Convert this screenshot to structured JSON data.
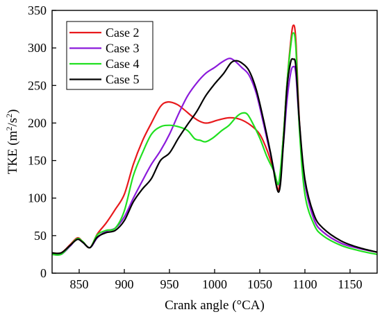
{
  "chart_data": {
    "type": "line",
    "title": "",
    "xlabel": "Crank angle (°CA)",
    "ylabel": "TKE (m²/s²)",
    "ylabel_parts": {
      "prefix": "TKE (m",
      "exp1": "2",
      "middle": "/s",
      "exp2": "2",
      "suffix": ")"
    },
    "xlim": [
      820,
      1180
    ],
    "ylim": [
      0,
      350
    ],
    "xticks": [
      850,
      900,
      950,
      1000,
      1050,
      1100,
      1150
    ],
    "yticks": [
      0,
      50,
      100,
      150,
      200,
      250,
      300,
      350
    ],
    "grid": false,
    "legend_position": "top-left",
    "series": [
      {
        "name": "Case 2",
        "color": "#e8191c",
        "x": [
          820,
          830,
          840,
          848,
          854,
          862,
          870,
          880,
          890,
          900,
          910,
          920,
          930,
          940,
          948,
          958,
          966,
          976,
          984,
          992,
          1004,
          1016,
          1028,
          1040,
          1050,
          1058,
          1066,
          1071,
          1076,
          1080,
          1084,
          1087,
          1090,
          1094,
          1100,
          1110,
          1120,
          1140,
          1160,
          1180
        ],
        "y": [
          27,
          27,
          38,
          47,
          42,
          34,
          52,
          67,
          85,
          105,
          145,
          176,
          200,
          222,
          228,
          225,
          218,
          208,
          202,
          200,
          204,
          207,
          205,
          197,
          185,
          164,
          135,
          112,
          180,
          250,
          305,
          330,
          310,
          200,
          120,
          72,
          55,
          40,
          33,
          28
        ]
      },
      {
        "name": "Case 3",
        "color": "#8b1adb",
        "x": [
          820,
          830,
          840,
          848,
          854,
          862,
          870,
          880,
          890,
          900,
          910,
          920,
          930,
          940,
          950,
          960,
          970,
          980,
          990,
          1000,
          1008,
          1016,
          1022,
          1030,
          1038,
          1046,
          1054,
          1062,
          1071,
          1076,
          1080,
          1084,
          1087,
          1090,
          1094,
          1100,
          1110,
          1120,
          1140,
          1160,
          1180
        ],
        "y": [
          25,
          25,
          36,
          46,
          41,
          34,
          47,
          56,
          60,
          75,
          100,
          123,
          145,
          163,
          185,
          212,
          236,
          253,
          266,
          274,
          281,
          286,
          283,
          274,
          264,
          240,
          200,
          158,
          118,
          170,
          228,
          265,
          275,
          265,
          195,
          120,
          72,
          55,
          40,
          33,
          28
        ]
      },
      {
        "name": "Case 4",
        "color": "#20e020",
        "x": [
          820,
          830,
          840,
          848,
          854,
          862,
          870,
          880,
          890,
          900,
          910,
          920,
          930,
          940,
          950,
          960,
          970,
          978,
          984,
          990,
          998,
          1008,
          1016,
          1024,
          1030,
          1036,
          1042,
          1050,
          1058,
          1066,
          1071,
          1076,
          1080,
          1084,
          1087,
          1090,
          1094,
          1100,
          1110,
          1120,
          1140,
          1160,
          1180
        ],
        "y": [
          25,
          25,
          37,
          46,
          42,
          34,
          51,
          57,
          60,
          83,
          130,
          160,
          185,
          195,
          197,
          195,
          190,
          179,
          177,
          175,
          180,
          190,
          197,
          208,
          213,
          212,
          200,
          180,
          155,
          135,
          120,
          180,
          250,
          300,
          320,
          300,
          190,
          105,
          65,
          50,
          37,
          30,
          25
        ]
      },
      {
        "name": "Case 5",
        "color": "#000000",
        "x": [
          820,
          830,
          840,
          848,
          854,
          862,
          870,
          880,
          890,
          900,
          910,
          920,
          930,
          940,
          950,
          960,
          970,
          980,
          990,
          1000,
          1010,
          1018,
          1024,
          1030,
          1038,
          1046,
          1054,
          1062,
          1071,
          1076,
          1080,
          1084,
          1087,
          1090,
          1094,
          1100,
          1110,
          1120,
          1140,
          1160,
          1180
        ],
        "y": [
          27,
          27,
          37,
          45,
          41,
          34,
          48,
          54,
          57,
          70,
          95,
          112,
          126,
          150,
          160,
          180,
          198,
          215,
          236,
          252,
          266,
          280,
          283,
          280,
          270,
          245,
          205,
          160,
          108,
          170,
          245,
          280,
          285,
          275,
          200,
          125,
          78,
          60,
          43,
          34,
          28
        ]
      }
    ]
  }
}
